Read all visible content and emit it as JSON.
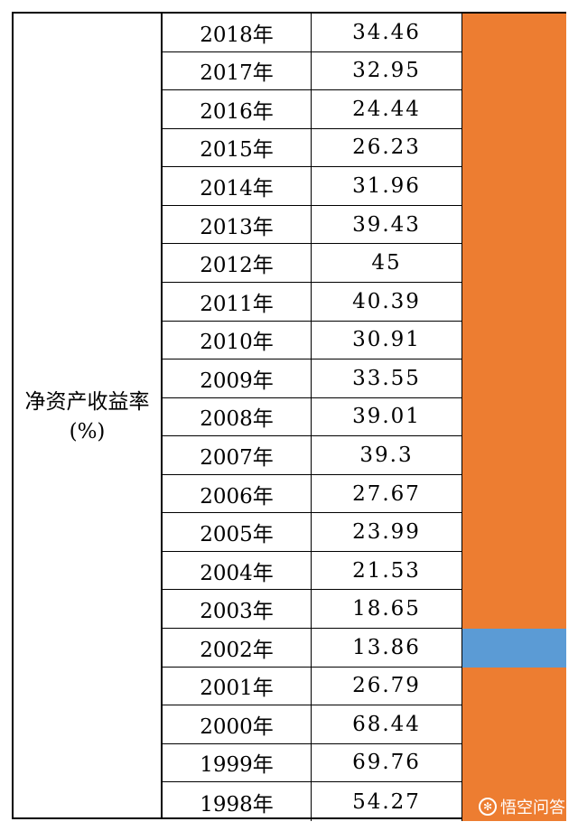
{
  "table": {
    "label": "净资产收益率(%)",
    "rows": [
      {
        "year": "2018年",
        "value": "34.46",
        "color": "#ED7D31"
      },
      {
        "year": "2017年",
        "value": "32.95",
        "color": "#ED7D31"
      },
      {
        "year": "2016年",
        "value": "24.44",
        "color": "#ED7D31"
      },
      {
        "year": "2015年",
        "value": "26.23",
        "color": "#ED7D31"
      },
      {
        "year": "2014年",
        "value": "31.96",
        "color": "#ED7D31"
      },
      {
        "year": "2013年",
        "value": "39.43",
        "color": "#ED7D31"
      },
      {
        "year": "2012年",
        "value": "45",
        "color": "#ED7D31"
      },
      {
        "year": "2011年",
        "value": "40.39",
        "color": "#ED7D31"
      },
      {
        "year": "2010年",
        "value": "30.91",
        "color": "#ED7D31"
      },
      {
        "year": "2009年",
        "value": "33.55",
        "color": "#ED7D31"
      },
      {
        "year": "2008年",
        "value": "39.01",
        "color": "#ED7D31"
      },
      {
        "year": "2007年",
        "value": "39.3",
        "color": "#ED7D31"
      },
      {
        "year": "2006年",
        "value": "27.67",
        "color": "#ED7D31"
      },
      {
        "year": "2005年",
        "value": "23.99",
        "color": "#ED7D31"
      },
      {
        "year": "2004年",
        "value": "21.53",
        "color": "#ED7D31"
      },
      {
        "year": "2003年",
        "value": "18.65",
        "color": "#ED7D31"
      },
      {
        "year": "2002年",
        "value": "13.86",
        "color": "#5B9BD5"
      },
      {
        "year": "2001年",
        "value": "26.79",
        "color": "#ED7D31"
      },
      {
        "year": "2000年",
        "value": "68.44",
        "color": "#ED7D31"
      },
      {
        "year": "1999年",
        "value": "69.76",
        "color": "#ED7D31"
      },
      {
        "year": "1998年",
        "value": "54.27",
        "color": "#ED7D31"
      }
    ]
  },
  "watermark": {
    "icon": "wukong-logo-icon",
    "text": "悟空问答"
  }
}
